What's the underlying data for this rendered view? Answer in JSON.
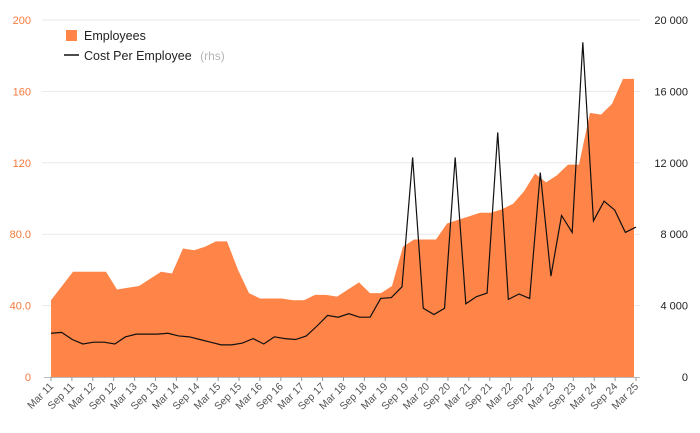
{
  "chart_data": {
    "type": "area",
    "grid": true,
    "legend_placement": "top-left",
    "colors": {
      "area": "#ff8447",
      "line": "#111111",
      "left_axis": "#f47a3c",
      "right_axis": "#222222",
      "grid": "#e9e9e9"
    },
    "y_left": {
      "lim": [
        0,
        200
      ],
      "ticks": [
        0,
        40,
        80,
        120,
        160,
        200
      ],
      "tick_labels": [
        "0",
        "40.0",
        "80.0",
        "120",
        "160",
        "200"
      ]
    },
    "y_right": {
      "lim": [
        0,
        20000
      ],
      "ticks": [
        0,
        4000,
        8000,
        12000,
        16000,
        20000
      ],
      "tick_labels": [
        "0",
        "4 000",
        "8 000",
        "12 000",
        "16 000",
        "20 000"
      ]
    },
    "x_tick_labels": [
      "Mar 11",
      "Sep 11",
      "Mar 12",
      "Sep 12",
      "Mar 13",
      "Sep 13",
      "Mar 14",
      "Sep 14",
      "Mar 15",
      "Sep 15",
      "Mar 16",
      "Sep 16",
      "Mar 17",
      "Sep 17",
      "Mar 18",
      "Sep 18",
      "Mar 19",
      "Sep 19",
      "Mar 20",
      "Sep 20",
      "Mar 21",
      "Sep 21",
      "Mar 22",
      "Sep 22",
      "Mar 23",
      "Sep 23",
      "Mar 24",
      "Sep 24",
      "Mar 25"
    ],
    "series": [
      {
        "name": "Employees",
        "axis": "left",
        "kind": "area",
        "points": [
          [
            0,
            43
          ],
          [
            2,
            59
          ],
          [
            3,
            59
          ],
          [
            4,
            59
          ],
          [
            5,
            59
          ],
          [
            6,
            49
          ],
          [
            7,
            50
          ],
          [
            8,
            51
          ],
          [
            9,
            55
          ],
          [
            10,
            59
          ],
          [
            11,
            58
          ],
          [
            12,
            72
          ],
          [
            13,
            71
          ],
          [
            14,
            73
          ],
          [
            15,
            76
          ],
          [
            16,
            76
          ],
          [
            17,
            60
          ],
          [
            18,
            47
          ],
          [
            19,
            44
          ],
          [
            20,
            44
          ],
          [
            21,
            44
          ],
          [
            22,
            43
          ],
          [
            23,
            43
          ],
          [
            24,
            46
          ],
          [
            25,
            46
          ],
          [
            26,
            45
          ],
          [
            27,
            49
          ],
          [
            28,
            53
          ],
          [
            29,
            47
          ],
          [
            30,
            47
          ],
          [
            31,
            51
          ],
          [
            32,
            73
          ],
          [
            33,
            77
          ],
          [
            34,
            77
          ],
          [
            35,
            77
          ],
          [
            36,
            86
          ],
          [
            37,
            88
          ],
          [
            38,
            90
          ],
          [
            39,
            92
          ],
          [
            40,
            92
          ],
          [
            41,
            94
          ],
          [
            42,
            97
          ],
          [
            43,
            104
          ],
          [
            44,
            114
          ],
          [
            45,
            109
          ],
          [
            46,
            113
          ],
          [
            47,
            119
          ],
          [
            48,
            119
          ],
          [
            49,
            148
          ],
          [
            50,
            147
          ],
          [
            51,
            153
          ],
          [
            52,
            167
          ],
          [
            53,
            167
          ]
        ]
      },
      {
        "name": "Cost Per Employee",
        "name_suffix": "(rhs)",
        "axis": "right",
        "kind": "line",
        "points": [
          [
            0,
            2450
          ],
          [
            1,
            2500
          ],
          [
            2,
            2100
          ],
          [
            3,
            1850
          ],
          [
            4,
            1950
          ],
          [
            5,
            1950
          ],
          [
            6,
            1850
          ],
          [
            7,
            2250
          ],
          [
            8,
            2400
          ],
          [
            9,
            2400
          ],
          [
            10,
            2400
          ],
          [
            11,
            2450
          ],
          [
            12,
            2300
          ],
          [
            13,
            2250
          ],
          [
            14,
            2100
          ],
          [
            15,
            1950
          ],
          [
            16,
            1800
          ],
          [
            17,
            1800
          ],
          [
            18,
            1900
          ],
          [
            19,
            2150
          ],
          [
            20,
            1850
          ],
          [
            21,
            2250
          ],
          [
            22,
            2150
          ],
          [
            23,
            2100
          ],
          [
            24,
            2300
          ],
          [
            25,
            2850
          ],
          [
            26,
            3450
          ],
          [
            27,
            3350
          ],
          [
            28,
            3550
          ],
          [
            29,
            3350
          ],
          [
            30,
            3350
          ],
          [
            31,
            4400
          ],
          [
            32,
            4450
          ],
          [
            33,
            5050
          ],
          [
            34,
            12300
          ],
          [
            35,
            3850
          ],
          [
            36,
            3500
          ],
          [
            37,
            3850
          ],
          [
            38,
            12300
          ],
          [
            39,
            4100
          ],
          [
            40,
            4500
          ],
          [
            41,
            4700
          ],
          [
            42,
            13700
          ],
          [
            43,
            4350
          ],
          [
            44,
            4650
          ],
          [
            45,
            4400
          ],
          [
            46,
            11450
          ],
          [
            47,
            5650
          ],
          [
            48,
            9050
          ],
          [
            49,
            8100
          ],
          [
            50,
            18750
          ],
          [
            51,
            8750
          ],
          [
            52,
            9850
          ],
          [
            53,
            9350
          ],
          [
            54,
            8100
          ],
          [
            55,
            8400
          ]
        ]
      }
    ]
  }
}
